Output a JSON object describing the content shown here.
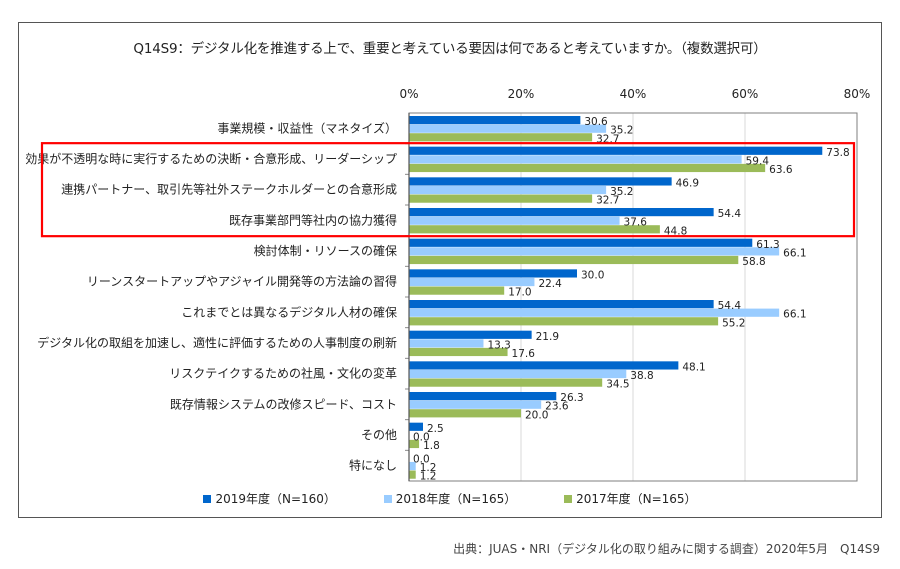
{
  "chart_data": {
    "type": "bar",
    "orientation": "horizontal",
    "title": "Q14S9：デジタル化を推進する上で、重要と考えている要因は何であると考えていますか。（複数選択可）",
    "xlabel": "",
    "ylabel": "",
    "xlim": [
      0,
      80
    ],
    "xticks": [
      0,
      20,
      40,
      60,
      80
    ],
    "xtick_labels": [
      "0%",
      "20%",
      "40%",
      "60%",
      "80%"
    ],
    "grid": true,
    "legend_position": "bottom",
    "categories": [
      "事業規模・収益性（マネタイズ）",
      "効果が不透明な時に実行するための決断・合意形成、リーダーシップ",
      "連携パートナー、取引先等社外ステークホルダーとの合意形成",
      "既存事業部門等社内の協力獲得",
      "検討体制・リソースの確保",
      "リーンスタートアップやアジャイル開発等の方法論の習得",
      "これまでとは異なるデジタル人材の確保",
      "デジタル化の取組を加速し、適性に評価するための人事制度の刷新",
      "リスクテイクするための社風・文化の変革",
      "既存情報システムの改修スピード、コスト",
      "その他",
      "特になし"
    ],
    "series": [
      {
        "name": "2019年度（N=160）",
        "color": "#0066CC",
        "values": [
          30.6,
          73.8,
          46.9,
          54.4,
          61.3,
          30.0,
          54.4,
          21.9,
          48.1,
          26.3,
          2.5,
          0.0
        ]
      },
      {
        "name": "2018年度（N=165）",
        "color": "#99CCFF",
        "values": [
          35.2,
          59.4,
          35.2,
          37.6,
          66.1,
          22.4,
          66.1,
          13.3,
          38.8,
          23.6,
          0.0,
          1.2
        ]
      },
      {
        "name": "2017年度（N=165）",
        "color": "#9BBB59",
        "values": [
          32.7,
          63.6,
          32.7,
          44.8,
          58.8,
          17.0,
          55.2,
          17.6,
          34.5,
          20.0,
          1.8,
          1.2
        ]
      }
    ],
    "highlight": {
      "categories_index_range": [
        1,
        3
      ],
      "color": "#FF0000"
    }
  },
  "source": "出典：JUAS・NRI（デジタル化の取り組みに関する調査）2020年5月　Q14S9"
}
